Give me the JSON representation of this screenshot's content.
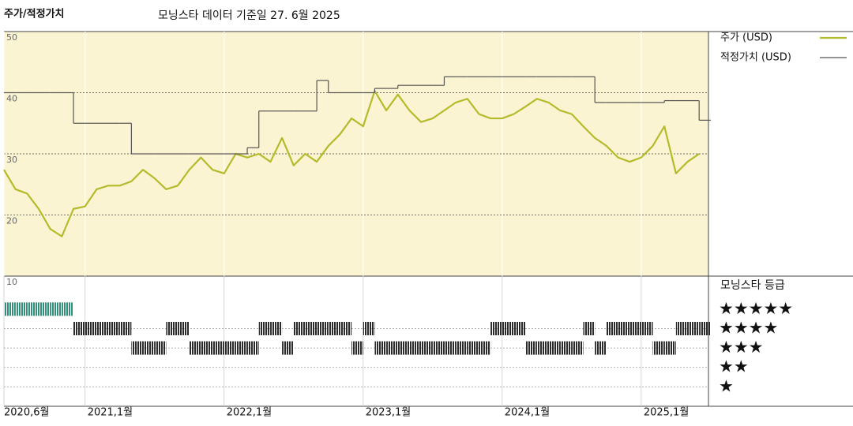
{
  "header": {
    "title": "주가/적정가치",
    "subtitle": "모닝스타 데이터 기준일 27. 6월 2025"
  },
  "chart_data": [
    {
      "type": "line",
      "x": [
        "2020-06",
        "2020-07",
        "2020-08",
        "2020-09",
        "2020-10",
        "2020-11",
        "2020-12",
        "2021-01",
        "2021-02",
        "2021-03",
        "2021-04",
        "2021-05",
        "2021-06",
        "2021-07",
        "2021-08",
        "2021-09",
        "2021-10",
        "2021-11",
        "2021-12",
        "2022-01",
        "2022-02",
        "2022-03",
        "2022-04",
        "2022-05",
        "2022-06",
        "2022-07",
        "2022-08",
        "2022-09",
        "2022-10",
        "2022-11",
        "2022-12",
        "2023-01",
        "2023-02",
        "2023-03",
        "2023-04",
        "2023-05",
        "2023-06",
        "2023-07",
        "2023-08",
        "2023-09",
        "2023-10",
        "2023-11",
        "2023-12",
        "2024-01",
        "2024-02",
        "2024-03",
        "2024-04",
        "2024-05",
        "2024-06",
        "2024-07",
        "2024-08",
        "2024-09",
        "2024-10",
        "2024-11",
        "2024-12",
        "2025-01",
        "2025-02",
        "2025-03",
        "2025-04",
        "2025-05",
        "2025-06"
      ],
      "series": [
        {
          "name": "주가 (USD)",
          "color": "#b3bb2a",
          "step": false,
          "values": [
            27.4,
            24.2,
            23.5,
            21,
            17.7,
            16.5,
            21,
            21.4,
            24.2,
            24.8,
            24.8,
            25.5,
            27.4,
            26,
            24.2,
            24.8,
            27.4,
            29.4,
            27.4,
            26.8,
            30,
            29.4,
            30,
            28.7,
            32.6,
            28.1,
            30,
            28.7,
            31.3,
            33.2,
            35.8,
            34.5,
            40.3,
            37.1,
            39.7,
            37.1,
            35.2,
            35.8,
            37.1,
            38.4,
            39,
            36.5,
            35.8,
            35.8,
            36.5,
            37.7,
            39,
            38.4,
            37.1,
            36.5,
            34.5,
            32.6,
            31.3,
            29.4,
            28.7,
            29.4,
            31.3,
            34.5,
            26.8,
            28.7,
            30
          ]
        },
        {
          "name": "적정가치 (USD)",
          "color": "#555555",
          "step": true,
          "values": [
            40,
            40,
            40,
            40,
            40,
            40,
            35,
            35,
            35,
            35,
            35,
            30,
            30,
            30,
            30,
            30,
            30,
            30,
            30,
            30,
            30,
            31,
            37,
            37,
            37,
            37,
            37,
            42,
            40,
            40,
            40,
            40,
            40.7,
            40.7,
            41.2,
            41.2,
            41.2,
            41.2,
            42.6,
            42.6,
            42.6,
            42.6,
            42.6,
            42.6,
            42.6,
            42.6,
            42.6,
            42.6,
            42.6,
            42.6,
            42.6,
            38.4,
            38.4,
            38.4,
            38.4,
            38.4,
            38.4,
            38.7,
            38.7,
            38.7,
            35.5
          ]
        }
      ],
      "ylim": [
        10,
        50
      ],
      "yticks": [
        10,
        20,
        30,
        40,
        50
      ],
      "xticks": [
        {
          "value": "2020-06",
          "label": "2020,6월"
        },
        {
          "value": "2021-01",
          "label": "2021,1월"
        },
        {
          "value": "2022-01",
          "label": "2022,1월"
        },
        {
          "value": "2023-01",
          "label": "2023,1월"
        },
        {
          "value": "2024-01",
          "label": "2024,1월"
        },
        {
          "value": "2025-01",
          "label": "2025,1월"
        }
      ],
      "background": "#faf4d2"
    },
    {
      "type": "rating",
      "title": "모닝스타 등급",
      "values": [
        5,
        5,
        5,
        5,
        5,
        5,
        4,
        4,
        4,
        4,
        4,
        3,
        3,
        3,
        4,
        4,
        3,
        3,
        3,
        3,
        3,
        3,
        4,
        4,
        3,
        4,
        4,
        4,
        4,
        4,
        3,
        4,
        3,
        3,
        3,
        3,
        3,
        3,
        3,
        3,
        3,
        3,
        4,
        4,
        4,
        3,
        3,
        3,
        3,
        3,
        4,
        3,
        4,
        4,
        4,
        4,
        3,
        3,
        4,
        4,
        4
      ],
      "ylim": [
        0,
        6.7
      ],
      "yticks": [
        {
          "value": 5,
          "label": "★★★★★"
        },
        {
          "value": 4,
          "label": "★★★★"
        },
        {
          "value": 3,
          "label": "★★★"
        },
        {
          "value": 2,
          "label": "★★"
        },
        {
          "value": 1,
          "label": "★"
        }
      ],
      "row_colors": [
        "#2f8f78",
        "#2b2b2b",
        "#2b2b2b",
        "#2b2b2b",
        "#2b2b2b"
      ]
    }
  ]
}
